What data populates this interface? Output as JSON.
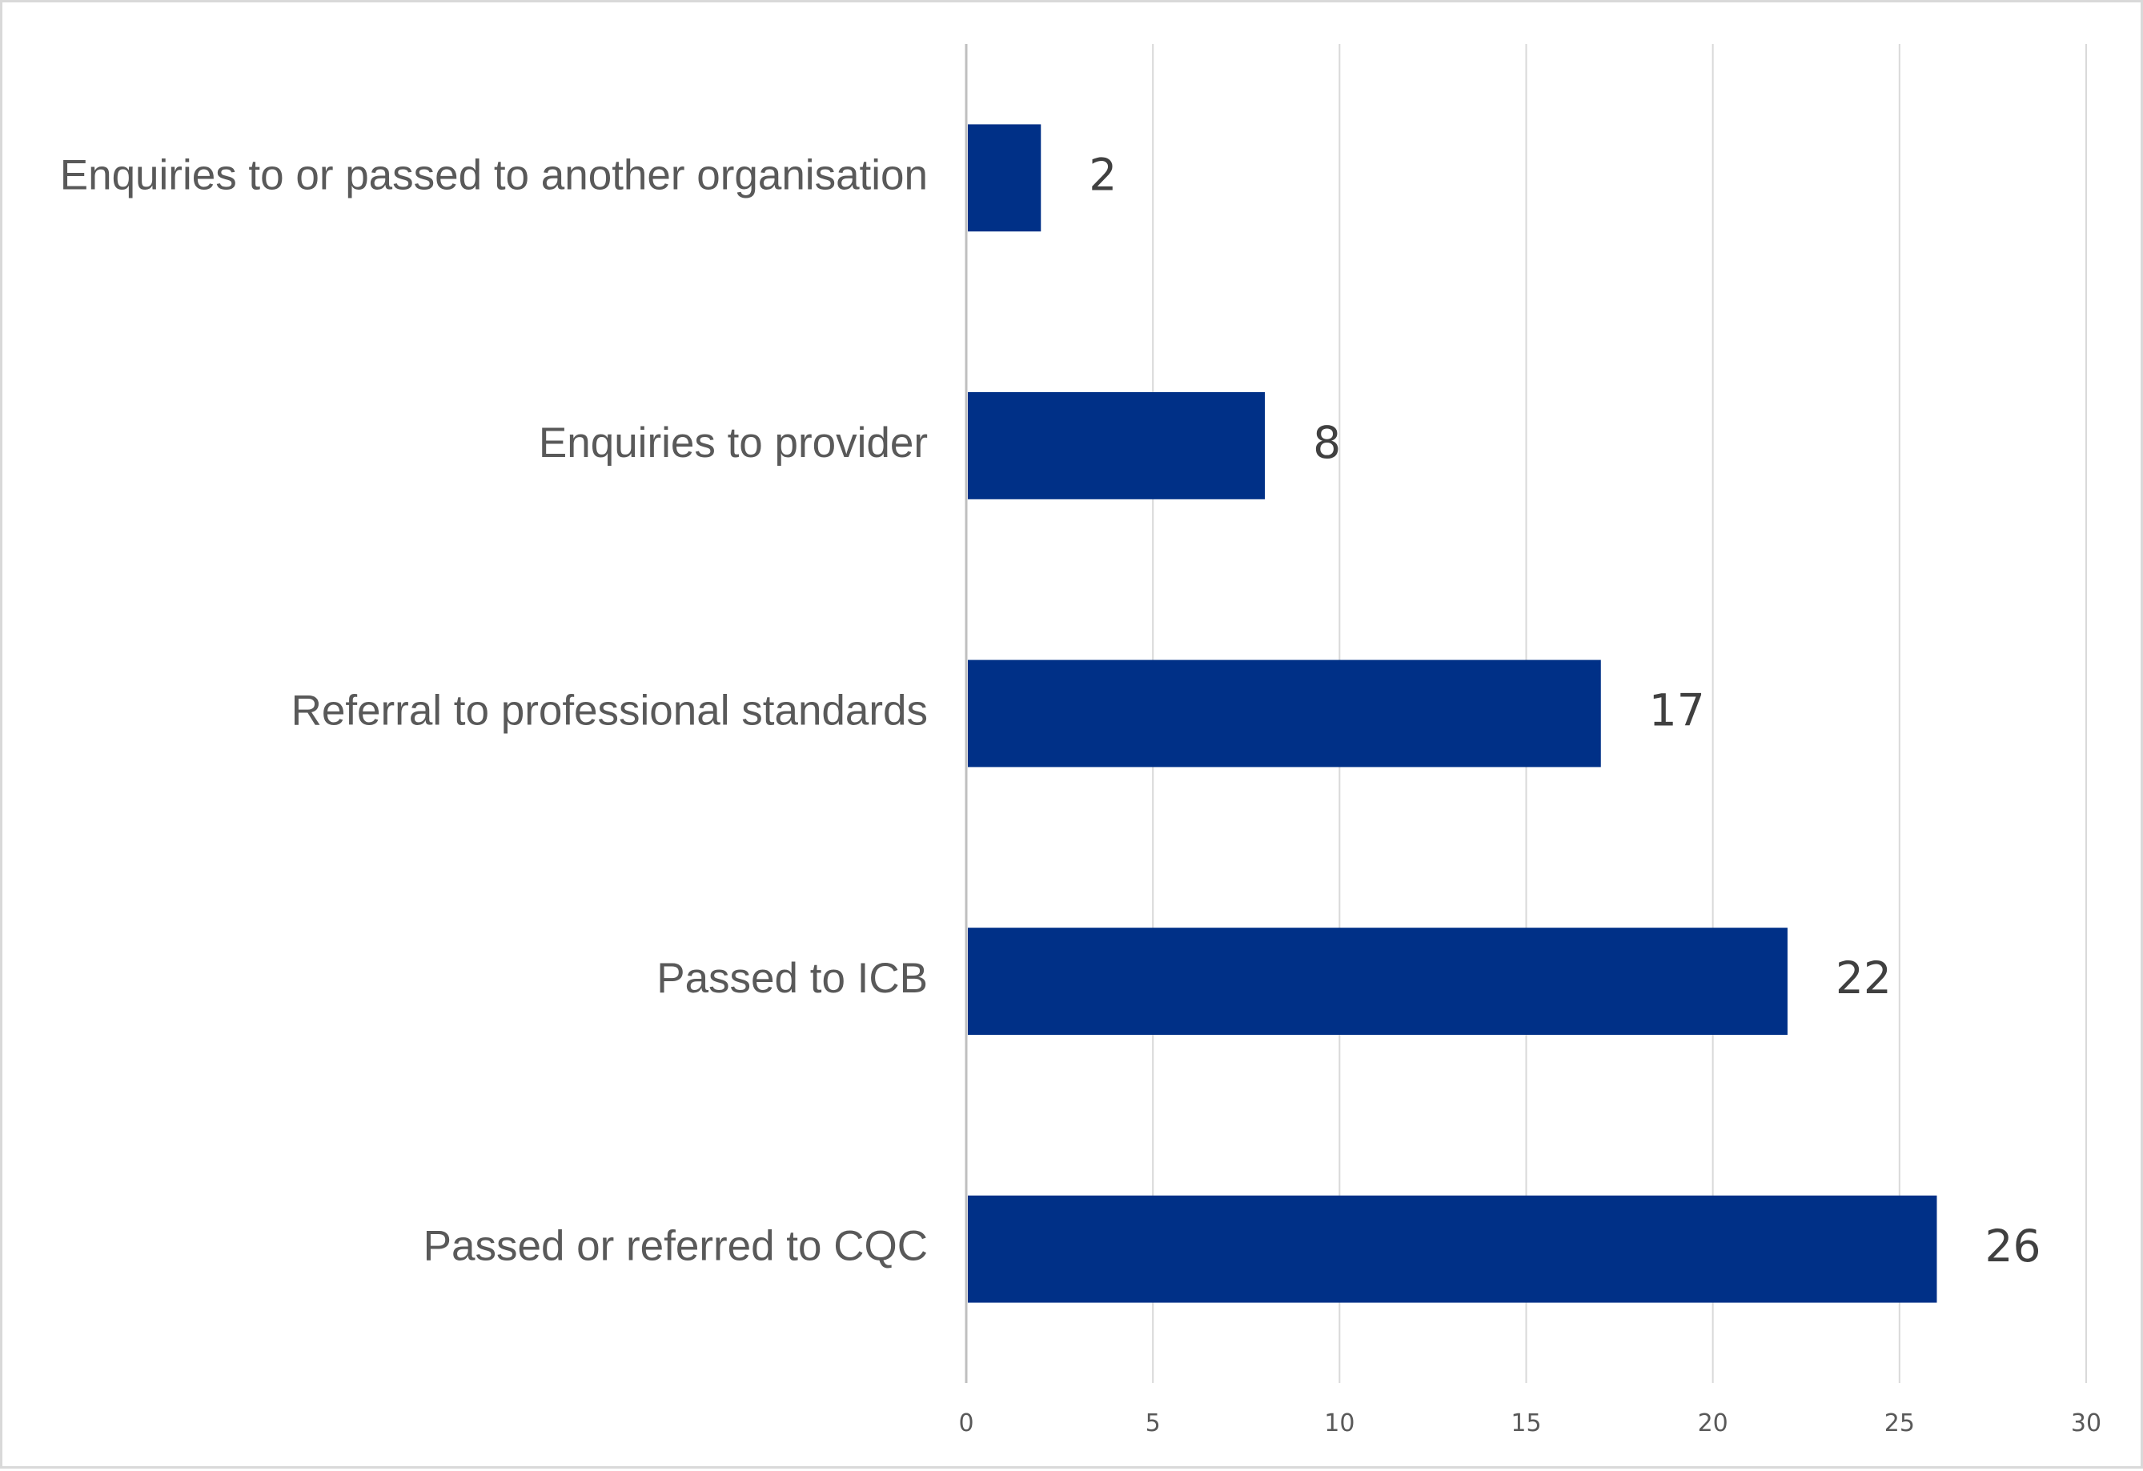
{
  "chart_data": {
    "type": "bar",
    "orientation": "horizontal",
    "categories": [
      "Enquiries to or passed to another organisation",
      "Enquiries to provider",
      "Referral to professional standards",
      "Passed to ICB",
      "Passed or referred to CQC"
    ],
    "values": [
      2,
      8,
      17,
      22,
      26
    ],
    "title": "",
    "xlabel": "",
    "ylabel": "",
    "xlim": [
      0,
      30
    ],
    "x_ticks": [
      0,
      5,
      10,
      15,
      20,
      25,
      30
    ],
    "grid": true,
    "legend": "none",
    "data_labels": true,
    "colors": {
      "bar": "#003087",
      "grid": "#d9d9d9",
      "axis": "#bfbfbf",
      "category_text": "#595959",
      "value_text": "#404040"
    }
  }
}
